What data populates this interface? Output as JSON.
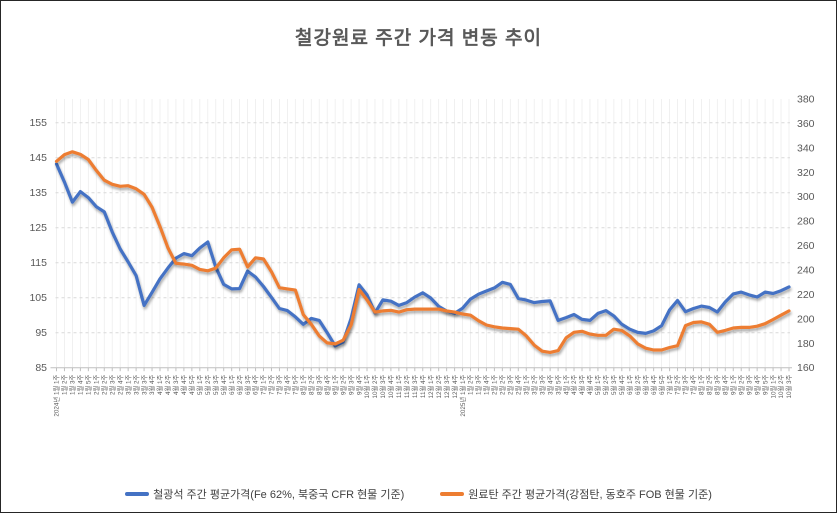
{
  "title": "철강원료 주간 가격 변동 추이",
  "legend": {
    "iron_ore_label": "철광석 주간 평균가격(Fe 62%, 북중국 CFR 현물 기준)",
    "coking_coal_label": "원료탄 주간 평균가격(강점탄, 동호주 FOB 현물 기준)"
  },
  "chart_data": {
    "type": "line",
    "title": "철강원료 주간 가격 변동 추이",
    "grid": "horizontal-dashed-and-weekly-vertical",
    "legend_position": "bottom",
    "left_axis": {
      "ticks": [
        155,
        145,
        135,
        125,
        115,
        105,
        95,
        85
      ],
      "min": 85,
      "tick_step": 10
    },
    "right_axis": {
      "ticks": [
        380,
        360,
        340,
        320,
        300,
        280,
        260,
        240,
        220,
        200,
        180,
        160
      ],
      "min": 160,
      "max": 380,
      "tick_step": 20
    },
    "categories": [
      "2024년 1월 1주",
      "1월 2주",
      "1월 3주",
      "1월 4주",
      "1월 5주",
      "2월 1주",
      "2월 2주",
      "2월 3주",
      "2월 4주",
      "3월 1주",
      "3월 2주",
      "3월 3주",
      "3월 4주",
      "4월 1주",
      "4월 2주",
      "4월 3주",
      "4월 4주",
      "4월 5주",
      "5월 1주",
      "5월 2주",
      "5월 3주",
      "5월 4주",
      "6월 1주",
      "6월 2주",
      "6월 3주",
      "6월 4주",
      "7월 1주",
      "7월 2주",
      "7월 3주",
      "7월 4주",
      "7월 5주",
      "8월 1주",
      "8월 2주",
      "8월 3주",
      "8월 4주",
      "9월 1주",
      "9월 2주",
      "9월 3주",
      "9월 4주",
      "10월 1주",
      "10월 2주",
      "10월 3주",
      "10월 4주",
      "11월 1주",
      "11월 2주",
      "11월 3주",
      "11월 4주",
      "12월 1주",
      "12월 2주",
      "12월 3주",
      "12월 4주",
      "2025년 1월 1주",
      "1월 2주",
      "1월 3주",
      "1월 4주",
      "2월 1주",
      "2월 2주",
      "2월 3주",
      "2월 4주",
      "3월 1주",
      "3월 2주",
      "3월 3주",
      "3월 4주",
      "3월 5주",
      "4월 1주",
      "4월 2주",
      "4월 3주",
      "4월 4주",
      "5월 1주",
      "5월 2주",
      "5월 3주",
      "5월 4주",
      "6월 1주",
      "6월 2주",
      "6월 3주",
      "6월 4주",
      "6월 5주",
      "7월 1주",
      "7월 2주",
      "7월 3주",
      "7월 4주",
      "8월 1주",
      "8월 2주",
      "8월 3주",
      "8월 4주",
      "9월 1주",
      "9월 2주",
      "9월 3주",
      "9월 4주",
      "9월 5주",
      "10월 1주",
      "10월 2주",
      "10월 3주"
    ],
    "series": [
      {
        "name": "철광석 주간 평균가격(Fe 62%, 북중국 CFR 현물 기준)",
        "axis": "left",
        "color": "#4472C4",
        "values": [
          143.2,
          138.0,
          132.3,
          135.3,
          133.6,
          131.0,
          129.5,
          123.8,
          118.9,
          115.2,
          111.3,
          102.8,
          106.5,
          110.4,
          113.5,
          116.3,
          117.6,
          117.0,
          119.2,
          120.9,
          113.8,
          108.8,
          107.5,
          107.6,
          112.6,
          110.9,
          108.2,
          105.1,
          101.9,
          101.3,
          99.5,
          97.4,
          99.1,
          98.5,
          95.0,
          91.2,
          92.3,
          99.1,
          108.7,
          105.8,
          100.7,
          104.4,
          104.0,
          102.8,
          103.6,
          105.2,
          106.4,
          104.9,
          102.5,
          101.2,
          100.5,
          102.0,
          104.6,
          106.0,
          106.9,
          107.8,
          109.4,
          108.8,
          104.8,
          104.3,
          103.6,
          103.9,
          104.1,
          98.5,
          99.3,
          100.2,
          98.8,
          98.5,
          100.5,
          101.3,
          99.8,
          97.4,
          96.0,
          95.1,
          94.8,
          95.5,
          97.0,
          101.5,
          104.2,
          101.0,
          101.9,
          102.6,
          102.2,
          100.9,
          103.8,
          106.1,
          106.6,
          105.8,
          105.2,
          106.6,
          106.2,
          107.0,
          108.1
        ]
      },
      {
        "name": "원료탄 주간 평균가격(강점탄, 동호주 FOB 현물 기준)",
        "axis": "right",
        "color": "#ED7D31",
        "values": [
          329.0,
          334.5,
          336.8,
          334.6,
          330.5,
          321.5,
          313.5,
          310.2,
          308.5,
          309.0,
          306.5,
          302.0,
          291.5,
          275.5,
          258.0,
          245.5,
          244.8,
          243.8,
          240.5,
          239.3,
          241.5,
          250.0,
          256.5,
          257.0,
          242.5,
          250.0,
          249.0,
          238.5,
          225.5,
          224.5,
          223.5,
          203.5,
          195.5,
          186.0,
          180.3,
          179.5,
          182.5,
          195.0,
          224.0,
          215.5,
          205.5,
          206.5,
          207.0,
          205.5,
          207.5,
          208.0,
          208.0,
          208.0,
          208.0,
          206.5,
          205.5,
          204.0,
          203.0,
          198.5,
          195.0,
          193.5,
          192.5,
          192.0,
          191.5,
          186.0,
          178.5,
          173.5,
          172.5,
          174.0,
          184.5,
          189.0,
          189.8,
          187.5,
          186.5,
          186.5,
          191.5,
          190.5,
          186.0,
          179.5,
          176.0,
          174.5,
          174.5,
          176.5,
          178.0,
          194.5,
          197.0,
          197.5,
          195.5,
          189.0,
          190.5,
          192.5,
          193.0,
          193.0,
          194.0,
          196.0,
          199.5,
          203.0,
          206.5
        ]
      }
    ]
  }
}
